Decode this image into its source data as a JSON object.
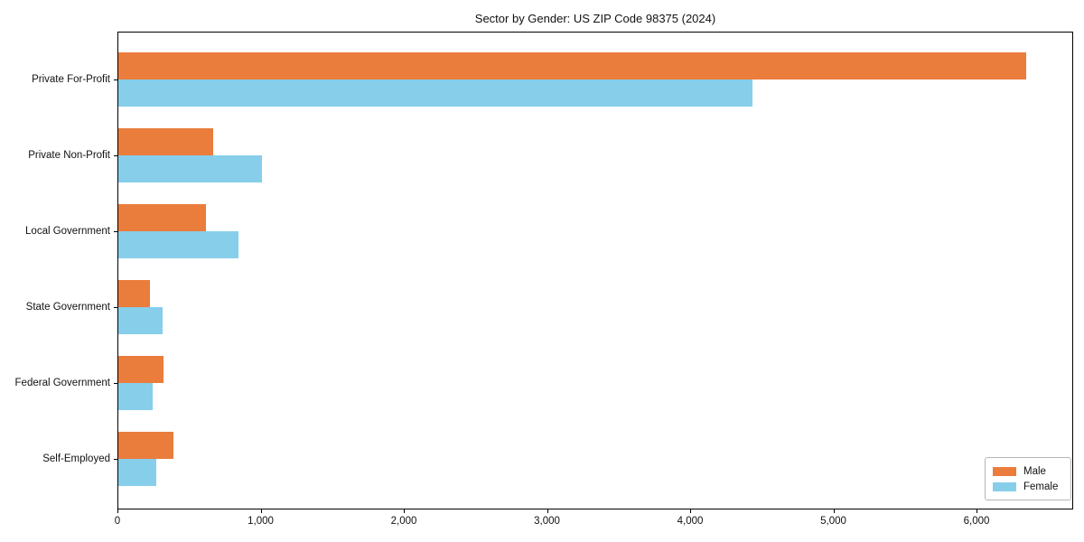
{
  "title": "Sector by Gender: US ZIP Code 98375 (2024)",
  "chart_data": {
    "type": "bar",
    "orientation": "horizontal",
    "title": "Sector by Gender: US ZIP Code 98375 (2024)",
    "categories": [
      "Private For-Profit",
      "Private Non-Profit",
      "Local Government",
      "State Government",
      "Federal Government",
      "Self-Employed"
    ],
    "series": [
      {
        "name": "Male",
        "color": "#EA7C3C",
        "values": [
          6340,
          660,
          610,
          220,
          315,
          385
        ]
      },
      {
        "name": "Female",
        "color": "#87CEEB",
        "values": [
          4430,
          1000,
          840,
          310,
          240,
          265
        ]
      }
    ],
    "xlabel": "",
    "ylabel": "",
    "xlim": [
      0,
      6675
    ],
    "xticks": [
      0,
      1000,
      2000,
      3000,
      4000,
      5000,
      6000
    ],
    "xtick_labels": [
      "0",
      "1,000",
      "2,000",
      "3,000",
      "4,000",
      "5,000",
      "6,000"
    ],
    "grid": false,
    "legend_position": "lower right",
    "axis_color": "#000000",
    "background_color": "#ffffff"
  }
}
